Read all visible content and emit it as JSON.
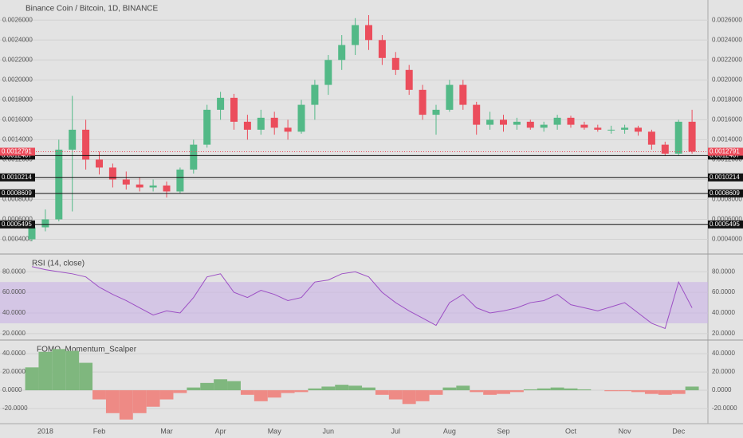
{
  "chart_data": [
    {
      "type": "candlestick",
      "title": "Binance Coin / Bitcoin, 1D, BINANCE",
      "categories": [
        null,
        "2018",
        null,
        null,
        null,
        "Feb",
        null,
        null,
        null,
        null,
        "Mar",
        null,
        null,
        null,
        "Apr",
        null,
        null,
        null,
        "May",
        null,
        null,
        null,
        "Jun",
        null,
        null,
        null,
        null,
        "Jul",
        null,
        null,
        null,
        "Aug",
        null,
        null,
        null,
        "Sep",
        null,
        null,
        null,
        null,
        "Oct",
        null,
        null,
        null,
        "Nov",
        null,
        null,
        null,
        "Dec",
        null
      ],
      "open": [
        0.0004,
        0.00052,
        0.0006,
        0.0013,
        0.0015,
        0.0012,
        0.00112,
        0.001,
        0.00095,
        0.00092,
        0.00094,
        0.00088,
        0.0011,
        0.00135,
        0.0017,
        0.00182,
        0.00158,
        0.0015,
        0.00162,
        0.00152,
        0.00148,
        0.00175,
        0.00195,
        0.0022,
        0.00235,
        0.00255,
        0.0024,
        0.00222,
        0.0021,
        0.0019,
        0.00165,
        0.0017,
        0.00195,
        0.00175,
        0.00155,
        0.0016,
        0.00155,
        0.00158,
        0.00152,
        0.00155,
        0.00162,
        0.00155,
        0.00152,
        0.0015,
        0.0015,
        0.00152,
        0.00148,
        0.00135,
        0.00126,
        0.00158
      ],
      "high": [
        0.00055,
        0.0007,
        0.0014,
        0.00184,
        0.0016,
        0.00128,
        0.00116,
        0.00108,
        0.00102,
        0.001,
        0.00098,
        0.00112,
        0.0014,
        0.00175,
        0.00188,
        0.00186,
        0.00165,
        0.0017,
        0.00168,
        0.0016,
        0.0018,
        0.002,
        0.00225,
        0.00245,
        0.00262,
        0.00265,
        0.00245,
        0.00228,
        0.00215,
        0.00195,
        0.00175,
        0.002,
        0.002,
        0.00178,
        0.00168,
        0.00165,
        0.00162,
        0.0016,
        0.00158,
        0.00165,
        0.00164,
        0.00158,
        0.00155,
        0.00154,
        0.00155,
        0.00154,
        0.0015,
        0.00138,
        0.0016,
        0.0017
      ],
      "low": [
        0.00038,
        0.00048,
        0.00058,
        0.00068,
        0.0011,
        0.00105,
        0.00092,
        0.0009,
        0.00088,
        0.00088,
        0.00082,
        0.00086,
        0.00106,
        0.00132,
        0.0016,
        0.0015,
        0.0014,
        0.00145,
        0.00145,
        0.0014,
        0.00146,
        0.0016,
        0.00185,
        0.0021,
        0.00225,
        0.0023,
        0.00215,
        0.00205,
        0.00185,
        0.0016,
        0.00145,
        0.00168,
        0.0017,
        0.00145,
        0.0015,
        0.00148,
        0.0015,
        0.0015,
        0.00148,
        0.0015,
        0.00152,
        0.0015,
        0.00148,
        0.00146,
        0.00146,
        0.00144,
        0.0013,
        0.00124,
        0.00124,
        0.00126
      ],
      "close": [
        0.00052,
        0.0006,
        0.0013,
        0.0015,
        0.0012,
        0.00112,
        0.001,
        0.00095,
        0.00092,
        0.00094,
        0.00088,
        0.0011,
        0.00135,
        0.0017,
        0.00182,
        0.00158,
        0.0015,
        0.00162,
        0.00152,
        0.00148,
        0.00175,
        0.00195,
        0.0022,
        0.00235,
        0.00255,
        0.0024,
        0.00222,
        0.0021,
        0.0019,
        0.00165,
        0.0017,
        0.00195,
        0.00175,
        0.00155,
        0.0016,
        0.00155,
        0.00158,
        0.00152,
        0.00155,
        0.00162,
        0.00155,
        0.00152,
        0.0015,
        0.0015,
        0.00152,
        0.00148,
        0.00135,
        0.00126,
        0.00158,
        0.00128
      ],
      "up_color": "#53b987",
      "down_color": "#eb4d5c",
      "ylim": [
        0.00026,
        0.00277
      ],
      "yticks": [
        {
          "value": 0.0004,
          "label": "0.0004000"
        },
        {
          "value": 0.0006,
          "label": "0.0006000"
        },
        {
          "value": 0.0008,
          "label": "0.0008000"
        },
        {
          "value": 0.001,
          "label": "0.0010000"
        },
        {
          "value": 0.0012,
          "label": "0.0012000"
        },
        {
          "value": 0.0014,
          "label": "0.0014000"
        },
        {
          "value": 0.0016,
          "label": "0.0016000"
        },
        {
          "value": 0.0018,
          "label": "0.0018000"
        },
        {
          "value": 0.002,
          "label": "0.0020000"
        },
        {
          "value": 0.0022,
          "label": "0.0022000"
        },
        {
          "value": 0.0024,
          "label": "0.0024000"
        },
        {
          "value": 0.0026,
          "label": "0.0026000"
        }
      ],
      "last_price": 0.0012791,
      "price_lines": [
        0.0012407,
        0.0010214,
        0.0008609,
        0.0005495
      ],
      "grid": true
    },
    {
      "type": "line",
      "title": "RSI (14, close)",
      "values": [
        85,
        82,
        80,
        78,
        75,
        65,
        58,
        52,
        45,
        38,
        42,
        40,
        55,
        75,
        78,
        60,
        55,
        62,
        58,
        52,
        55,
        70,
        72,
        78,
        80,
        75,
        60,
        50,
        42,
        35,
        28,
        50,
        58,
        45,
        40,
        42,
        45,
        50,
        52,
        58,
        48,
        45,
        42,
        46,
        50,
        40,
        30,
        25,
        70,
        45
      ],
      "color": "#9c4fc4",
      "band": [
        30,
        70
      ],
      "band_color": "#c9b3e6",
      "ylim": [
        14.5,
        96.4
      ],
      "yticks": [
        {
          "value": 20,
          "label": "20.0000"
        },
        {
          "value": 40,
          "label": "40.0000"
        },
        {
          "value": 60,
          "label": "60.0000"
        },
        {
          "value": 80,
          "label": "80.0000"
        }
      ],
      "grid": true
    },
    {
      "type": "histogram",
      "title": "FOMO_Momentum_Scalper",
      "values": [
        25,
        42,
        45,
        43,
        30,
        -10,
        -25,
        -32,
        -25,
        -18,
        -10,
        -3,
        3,
        8,
        12,
        10,
        -5,
        -12,
        -8,
        -3,
        -2,
        2,
        4,
        6,
        5,
        3,
        -5,
        -10,
        -15,
        -12,
        -5,
        3,
        5,
        -2,
        -5,
        -4,
        -2,
        1,
        2,
        3,
        2,
        1,
        0,
        -1,
        -1,
        -2,
        -4,
        -5,
        -4,
        4
      ],
      "up_color": "#7fb77e",
      "down_color": "#ee8a85",
      "ylim": [
        -36.5,
        54
      ],
      "yticks": [
        {
          "value": -20,
          "label": "-20.0000"
        },
        {
          "value": 0,
          "label": "0.0000"
        },
        {
          "value": 20,
          "label": "20.0000"
        },
        {
          "value": 40,
          "label": "40.0000"
        }
      ],
      "grid": true
    }
  ]
}
